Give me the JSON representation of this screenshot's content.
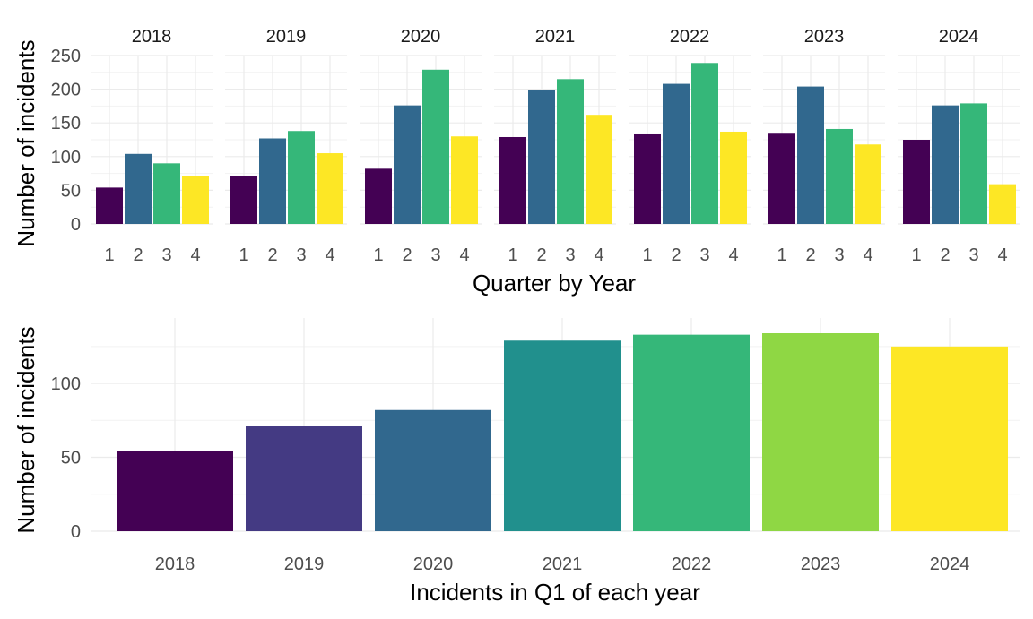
{
  "chart_data": [
    {
      "type": "bar",
      "layout": "faceted",
      "facets": [
        "2018",
        "2019",
        "2020",
        "2021",
        "2022",
        "2023",
        "2024"
      ],
      "categories": [
        "1",
        "2",
        "3",
        "4"
      ],
      "values": [
        [
          54,
          104,
          90,
          71
        ],
        [
          71,
          127,
          138,
          105
        ],
        [
          82,
          176,
          229,
          130
        ],
        [
          129,
          199,
          215,
          162
        ],
        [
          133,
          208,
          239,
          137
        ],
        [
          134,
          204,
          141,
          118
        ],
        [
          125,
          176,
          179,
          59
        ]
      ],
      "colors": [
        "#440154",
        "#31688E",
        "#35B779",
        "#FDE725"
      ],
      "xlabel": "Quarter by Year",
      "ylabel": "Number of incidents",
      "ylim": [
        0,
        250
      ],
      "yticks": [
        0,
        50,
        100,
        150,
        200,
        250
      ],
      "grid": true
    },
    {
      "type": "bar",
      "categories": [
        "2018",
        "2019",
        "2020",
        "2021",
        "2022",
        "2023",
        "2024"
      ],
      "values": [
        54,
        71,
        82,
        129,
        133,
        134,
        125
      ],
      "colors": [
        "#440154",
        "#443A83",
        "#31688E",
        "#21908D",
        "#35B779",
        "#8FD744",
        "#FDE725"
      ],
      "xlabel": "Incidents in Q1 of each year",
      "ylabel": "Number of incidents",
      "ylim": [
        0,
        134
      ],
      "yticks": [
        0,
        50,
        100
      ],
      "grid": true
    }
  ]
}
